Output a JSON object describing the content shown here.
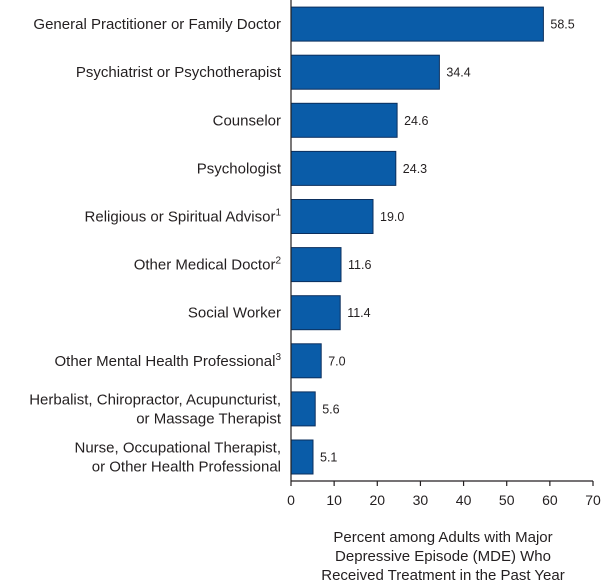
{
  "chart_data": {
    "type": "bar",
    "orientation": "horizontal",
    "categories": [
      {
        "lines": [
          "General Practitioner or Family Doctor"
        ],
        "superscript": ""
      },
      {
        "lines": [
          "Psychiatrist or Psychotherapist"
        ],
        "superscript": ""
      },
      {
        "lines": [
          "Counselor"
        ],
        "superscript": ""
      },
      {
        "lines": [
          "Psychologist"
        ],
        "superscript": ""
      },
      {
        "lines": [
          "Religious or Spiritual Advisor"
        ],
        "superscript": "1"
      },
      {
        "lines": [
          "Other Medical Doctor"
        ],
        "superscript": "2"
      },
      {
        "lines": [
          "Social Worker"
        ],
        "superscript": ""
      },
      {
        "lines": [
          "Other Mental Health Professional"
        ],
        "superscript": "3"
      },
      {
        "lines": [
          "Herbalist, Chiropractor, Acupuncturist,",
          "or Massage Therapist"
        ],
        "superscript": ""
      },
      {
        "lines": [
          "Nurse, Occupational Therapist,",
          "or Other Health Professional"
        ],
        "superscript": ""
      }
    ],
    "values": [
      58.5,
      34.4,
      24.6,
      24.3,
      19.0,
      11.6,
      11.4,
      7.0,
      5.6,
      5.1
    ],
    "value_labels": [
      "58.5",
      "34.4",
      "24.6",
      "24.3",
      "19.0",
      "11.6",
      "11.4",
      "7.0",
      "5.6",
      "5.1"
    ],
    "xticks": [
      "0",
      "10",
      "20",
      "30",
      "40",
      "50",
      "60",
      "70"
    ],
    "xlim": [
      0,
      70
    ],
    "xlabel_lines": [
      "Percent among Adults with Major",
      "Depressive Episode (MDE) Who",
      "Received Treatment in the Past Year"
    ],
    "title": "",
    "grid": false,
    "bar_color": "#0a5ca8",
    "bar_edge_color": "#0b2f5e"
  }
}
